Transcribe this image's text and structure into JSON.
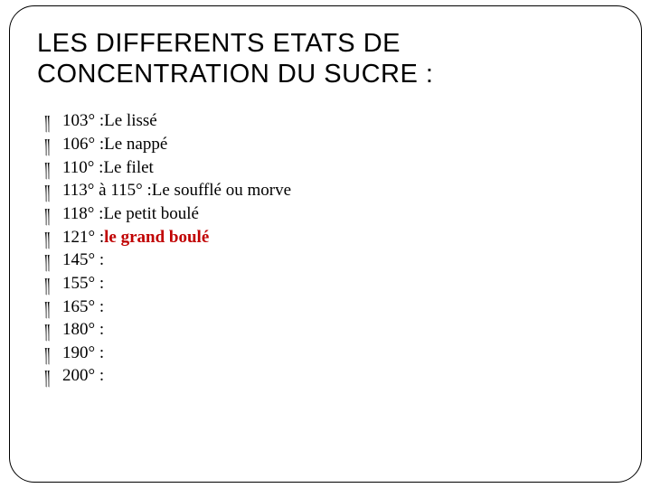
{
  "title": "LES  DIFFERENTS  ETATS DE CONCENTRATION  DU  SUCRE :",
  "bullet_glyph": "༎",
  "highlight_color": "#c00000",
  "items": [
    {
      "temp": "103° ",
      "sep": ": ",
      "label": "Le lissé",
      "highlight": false
    },
    {
      "temp": "106° ",
      "sep": ": ",
      "label": "Le nappé",
      "highlight": false
    },
    {
      "temp": "110° ",
      "sep": ": ",
      "label": "Le filet",
      "highlight": false
    },
    {
      "temp": "113° à 115° ",
      "sep": ": ",
      "label": "Le soufflé ou morve",
      "highlight": false
    },
    {
      "temp": "118° ",
      "sep": ": ",
      "label": "Le petit boulé",
      "highlight": false
    },
    {
      "temp": "121° ",
      "sep": ": ",
      "label": "le grand boulé",
      "highlight": true
    },
    {
      "temp": "145° ",
      "sep": ":",
      "label": "",
      "highlight": false
    },
    {
      "temp": "155° ",
      "sep": ":",
      "label": "",
      "highlight": false
    },
    {
      "temp": "165° ",
      "sep": ":",
      "label": "",
      "highlight": false
    },
    {
      "temp": "180° ",
      "sep": ":",
      "label": "",
      "highlight": false
    },
    {
      "temp": "190° ",
      "sep": ":",
      "label": "",
      "highlight": false
    },
    {
      "temp": "200° ",
      "sep": ":",
      "label": "",
      "highlight": false
    }
  ]
}
